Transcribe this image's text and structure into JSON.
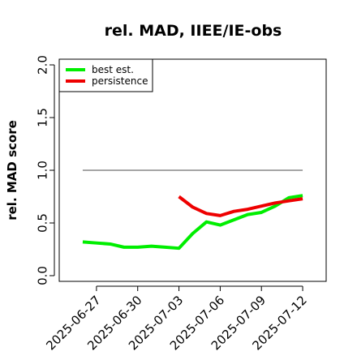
{
  "chart_data": {
    "type": "line",
    "title": "rel. MAD, IIEE/IE-obs",
    "y_label": "rel. MAD score",
    "x": [
      "2025-06-26",
      "2025-06-27",
      "2025-06-28",
      "2025-06-29",
      "2025-06-30",
      "2025-07-01",
      "2025-07-02",
      "2025-07-03",
      "2025-07-04",
      "2025-07-05",
      "2025-07-06",
      "2025-07-07",
      "2025-07-08",
      "2025-07-09",
      "2025-07-10",
      "2025-07-11",
      "2025-07-12"
    ],
    "series": [
      {
        "name": "best est.",
        "color": "#00ee00",
        "values": [
          0.32,
          0.31,
          0.3,
          0.27,
          0.27,
          0.28,
          0.27,
          0.26,
          0.4,
          0.51,
          0.48,
          0.53,
          0.58,
          0.6,
          0.66,
          0.74,
          0.76
        ]
      },
      {
        "name": "persistence",
        "color": "#ee0000",
        "values": [
          null,
          null,
          null,
          null,
          null,
          null,
          null,
          0.75,
          0.65,
          0.59,
          0.57,
          0.61,
          0.63,
          0.66,
          0.69,
          0.71,
          0.73
        ]
      }
    ],
    "reference_line": {
      "value": 1.0,
      "color": "#888888"
    },
    "xlim": [
      "2025-06-24T07:00",
      "2025-07-13T17:00"
    ],
    "xticks": [
      "2025-06-27",
      "2025-06-30",
      "2025-07-03",
      "2025-07-06",
      "2025-07-09",
      "2025-07-12"
    ],
    "ylim": [
      -0.054,
      2.054
    ],
    "yticks": [
      {
        "value": 0,
        "label": "0.0"
      },
      0.5,
      {
        "value": 1,
        "label": "1.0"
      },
      1.5,
      {
        "value": 2,
        "label": "2.0"
      }
    ],
    "legend": "top-left"
  }
}
